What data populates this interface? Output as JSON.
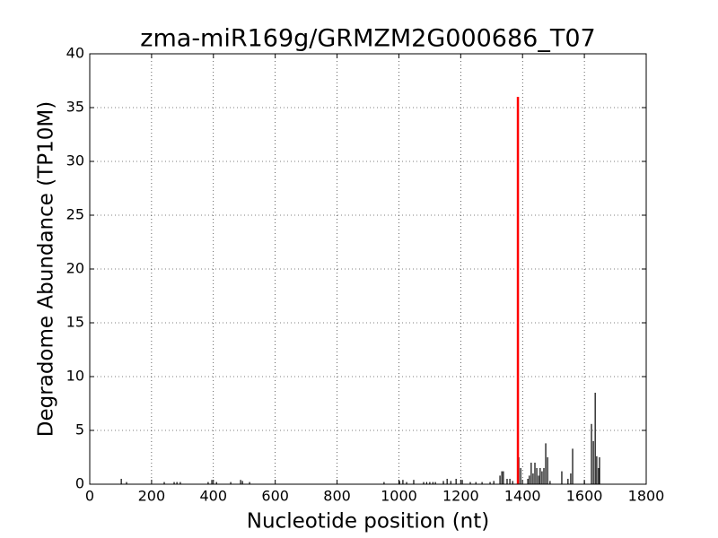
{
  "chart_data": {
    "type": "spike",
    "title": "zma-miR169g/GRMZM2G000686_T07",
    "x_label": "Nucleotide position (nt)",
    "y_label": "Degradome Abundance (TP10M)",
    "xlim": [
      0,
      1800
    ],
    "xticks": [
      0,
      200,
      400,
      600,
      800,
      1000,
      1200,
      1400,
      1600,
      1800
    ],
    "ylim": [
      0,
      40
    ],
    "yticks": [
      0,
      5,
      10,
      15,
      20,
      25,
      30,
      35,
      40
    ],
    "grid": true,
    "series": [
      {
        "color": "#000000",
        "x": [
          102,
          119,
          241,
          273,
          282,
          293,
          383,
          395,
          410,
          456,
          488,
          494,
          517,
          952,
          1002,
          1013,
          1025,
          1048,
          1080,
          1090,
          1100,
          1110,
          1118,
          1144,
          1156,
          1168,
          1185,
          1205,
          1231,
          1249,
          1269,
          1295,
          1307,
          1327,
          1333,
          1338,
          1350,
          1359,
          1368,
          1388,
          1394,
          1417,
          1422,
          1428,
          1434,
          1440,
          1446,
          1452,
          1457,
          1463,
          1469,
          1475,
          1481,
          1489,
          1527,
          1547,
          1556,
          1562,
          1600,
          1623,
          1629,
          1635,
          1640,
          1646,
          1649
        ],
        "values": [
          0.5,
          0.2,
          0.2,
          0.2,
          0.2,
          0.2,
          0.2,
          0.4,
          0.2,
          0.2,
          0.4,
          0.3,
          0.2,
          0.2,
          0.3,
          0.4,
          0.2,
          0.4,
          0.2,
          0.2,
          0.2,
          0.2,
          0.2,
          0.3,
          0.5,
          0.3,
          0.5,
          0.4,
          0.2,
          0.2,
          0.2,
          0.2,
          0.3,
          0.8,
          1.2,
          1.2,
          0.5,
          0.5,
          0.3,
          2.5,
          1.5,
          0.5,
          0.8,
          2,
          1,
          2,
          1.5,
          0.8,
          1.5,
          1.2,
          1.5,
          3.8,
          2.5,
          0.3,
          1.2,
          0.5,
          1,
          3.3,
          0.3,
          5.6,
          4,
          8.5,
          2.6,
          1.5,
          2.5
        ]
      },
      {
        "color": "#ff0000",
        "x": [
          1385
        ],
        "values": [
          36
        ]
      }
    ]
  }
}
